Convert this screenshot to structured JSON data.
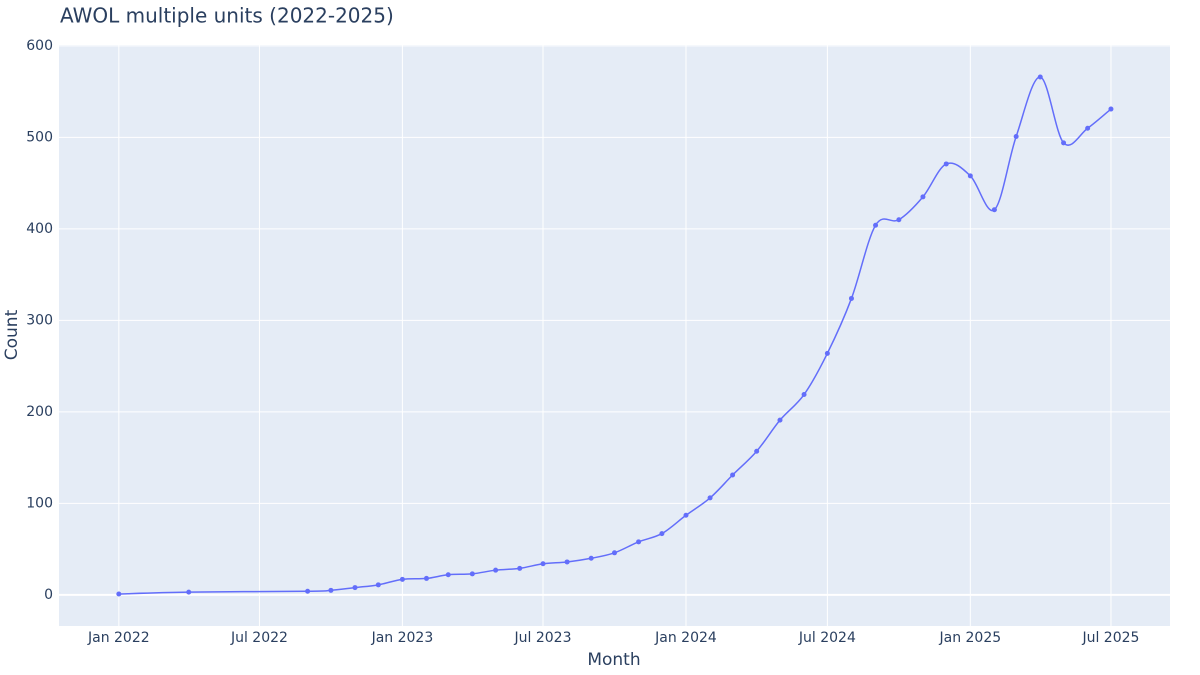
{
  "chart_data": {
    "type": "line",
    "title": "AWOL multiple units (2022-2025)",
    "x_label": "Month",
    "y_label": "Count",
    "x": [
      "2022-01",
      "2022-04",
      "2022-09",
      "2022-10",
      "2022-11",
      "2022-12",
      "2023-01",
      "2023-02",
      "2023-03",
      "2023-04",
      "2023-05",
      "2023-06",
      "2023-07",
      "2023-08",
      "2023-09",
      "2023-10",
      "2023-11",
      "2023-12",
      "2024-01",
      "2024-02",
      "2024-03",
      "2024-04",
      "2024-05",
      "2024-06",
      "2024-07",
      "2024-08",
      "2024-09",
      "2024-10",
      "2024-11",
      "2024-12",
      "2025-01",
      "2025-02",
      "2025-03",
      "2025-04",
      "2025-05",
      "2025-06",
      "2025-07"
    ],
    "series": [
      {
        "name": "Count",
        "color": "#636efa",
        "values": [
          1,
          3,
          4,
          5,
          8,
          11,
          17,
          18,
          22,
          23,
          27,
          29,
          34,
          36,
          40,
          46,
          58,
          67,
          87,
          106,
          131,
          157,
          191,
          219,
          264,
          324,
          404,
          410,
          435,
          471,
          458,
          421,
          501,
          566,
          494,
          510,
          531
        ]
      }
    ],
    "xlim": [
      "2021-10-16",
      "2025-09-15"
    ],
    "xticks": [
      {
        "value": "2022-01-01",
        "label": "Jan 2022"
      },
      {
        "value": "2022-07-01",
        "label": "Jul 2022"
      },
      {
        "value": "2023-01-01",
        "label": "Jan 2023"
      },
      {
        "value": "2023-07-01",
        "label": "Jul 2023"
      },
      {
        "value": "2024-01-01",
        "label": "Jan 2024"
      },
      {
        "value": "2024-07-01",
        "label": "Jul 2024"
      },
      {
        "value": "2025-01-01",
        "label": "Jan 2025"
      },
      {
        "value": "2025-07-01",
        "label": "Jul 2025"
      }
    ],
    "ylim": [
      -34,
      601
    ],
    "yticks": [
      0,
      100,
      200,
      300,
      400,
      500,
      600
    ],
    "grid": true,
    "smooth": true
  }
}
